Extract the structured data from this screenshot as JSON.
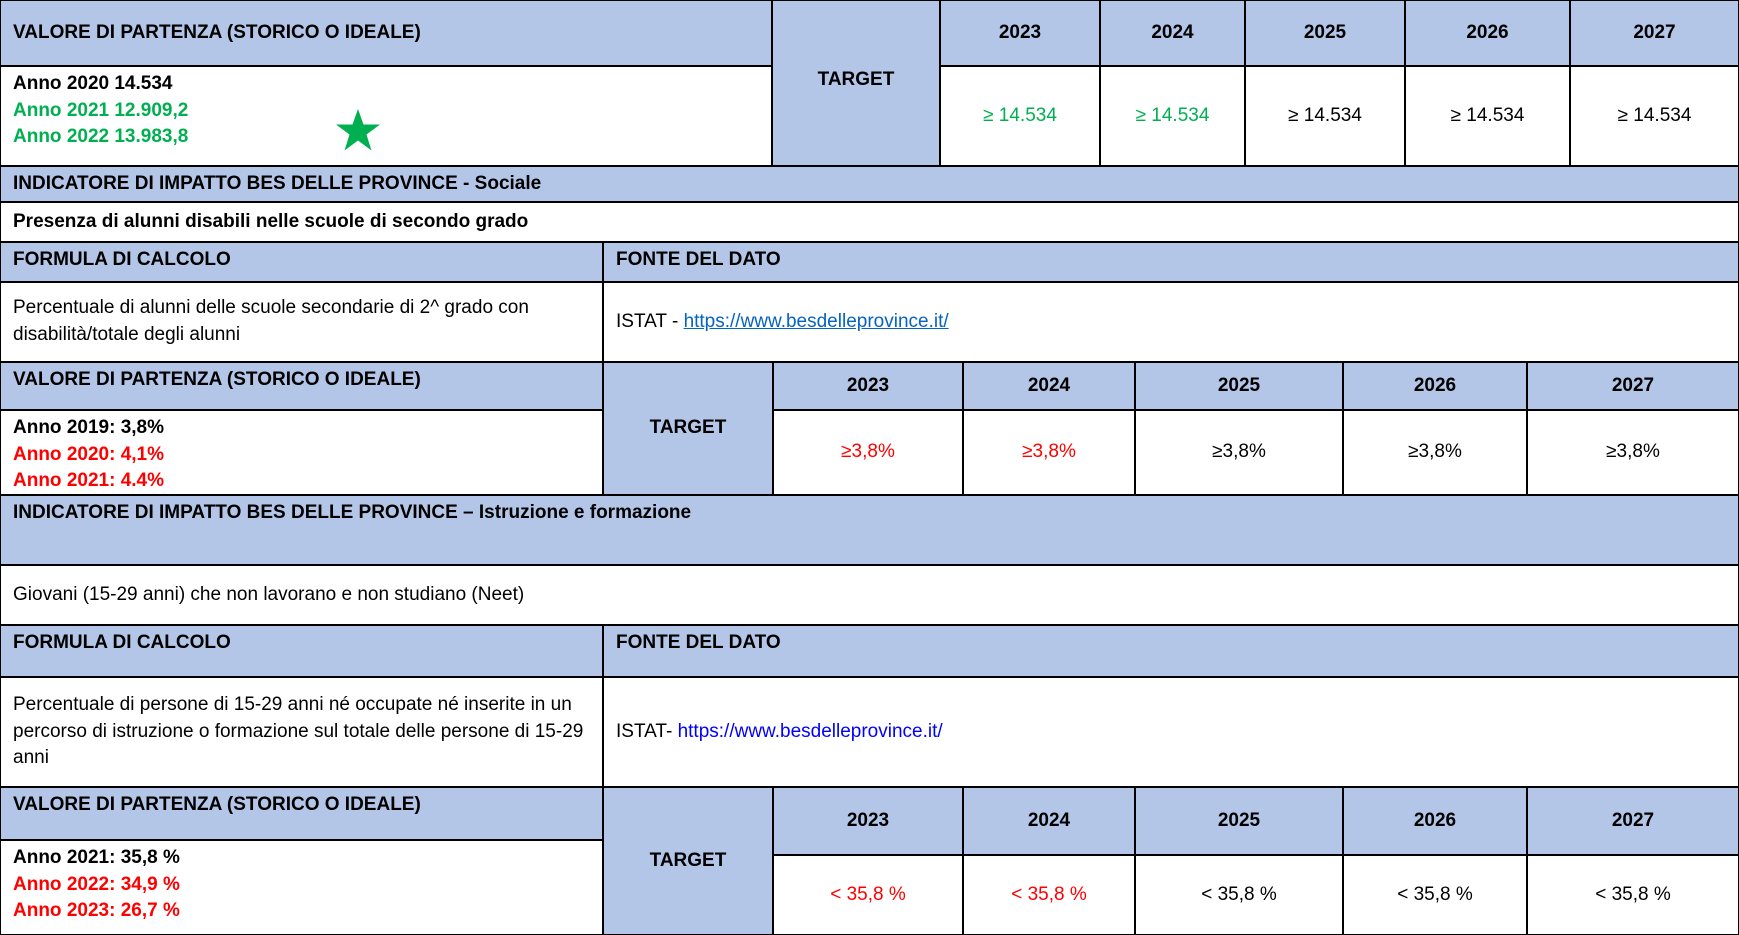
{
  "block1": {
    "header": "VALORE DI PARTENZA (STORICO O IDEALE)",
    "target_label": "TARGET",
    "years": [
      2023,
      2024,
      2025,
      2026,
      2027
    ],
    "baseline": [
      "Anno 2020 14.534",
      "Anno 2021 12.909,2",
      "Anno 2022 13.983,8"
    ],
    "targets": [
      "≥ 14.534",
      "≥ 14.534",
      "≥ 14.534",
      "≥ 14.534",
      "≥ 14.534"
    ]
  },
  "indicator_sociale": {
    "title": "INDICATORE DI IMPATTO BES DELLE PROVINCE - Sociale",
    "name": "Presenza di alunni disabili nelle scuole di secondo grado",
    "formula_header": "FORMULA DI CALCOLO",
    "source_header": "FONTE DEL DATO",
    "formula": "Percentuale di alunni delle scuole secondarie di 2^ grado con disabilità/totale degli alunni",
    "source_prefix": "ISTAT - ",
    "source_link": "https://www.besdelleprovince.it/",
    "baseline_header": "VALORE DI PARTENZA (STORICO O IDEALE)",
    "target_label": "TARGET",
    "years": [
      2023,
      2024,
      2025,
      2026,
      2027
    ],
    "baseline": [
      "Anno 2019: 3,8%",
      "Anno 2020: 4,1%",
      "Anno 2021: 4.4%"
    ],
    "targets": [
      "≥3,8%",
      "≥3,8%",
      "≥3,8%",
      "≥3,8%",
      "≥3,8%"
    ]
  },
  "indicator_istruzione": {
    "title": "INDICATORE DI IMPATTO BES DELLE PROVINCE – Istruzione e formazione",
    "name": "Giovani (15-29 anni) che non lavorano e non studiano (Neet)",
    "formula_header": "FORMULA DI CALCOLO",
    "source_header": "FONTE DEL DATO",
    "formula": "Percentuale di persone di 15-29 anni né occupate né inserite in un percorso di istruzione o formazione sul totale delle persone di 15-29 anni",
    "source_prefix": "ISTAT- ",
    "source_link": "https://www.besdelleprovince.it/",
    "baseline_header": "VALORE DI PARTENZA (STORICO O IDEALE)",
    "target_label": "TARGET",
    "years": [
      2023,
      2024,
      2025,
      2026,
      2027
    ],
    "baseline": [
      "Anno 2021: 35,8 %",
      "Anno 2022: 34,9 %",
      "Anno 2023: 26,7 %"
    ],
    "targets": [
      "< 35,8 %",
      "< 35,8 %",
      "< 35,8 %",
      "< 35,8 %",
      "< 35,8 %"
    ]
  }
}
